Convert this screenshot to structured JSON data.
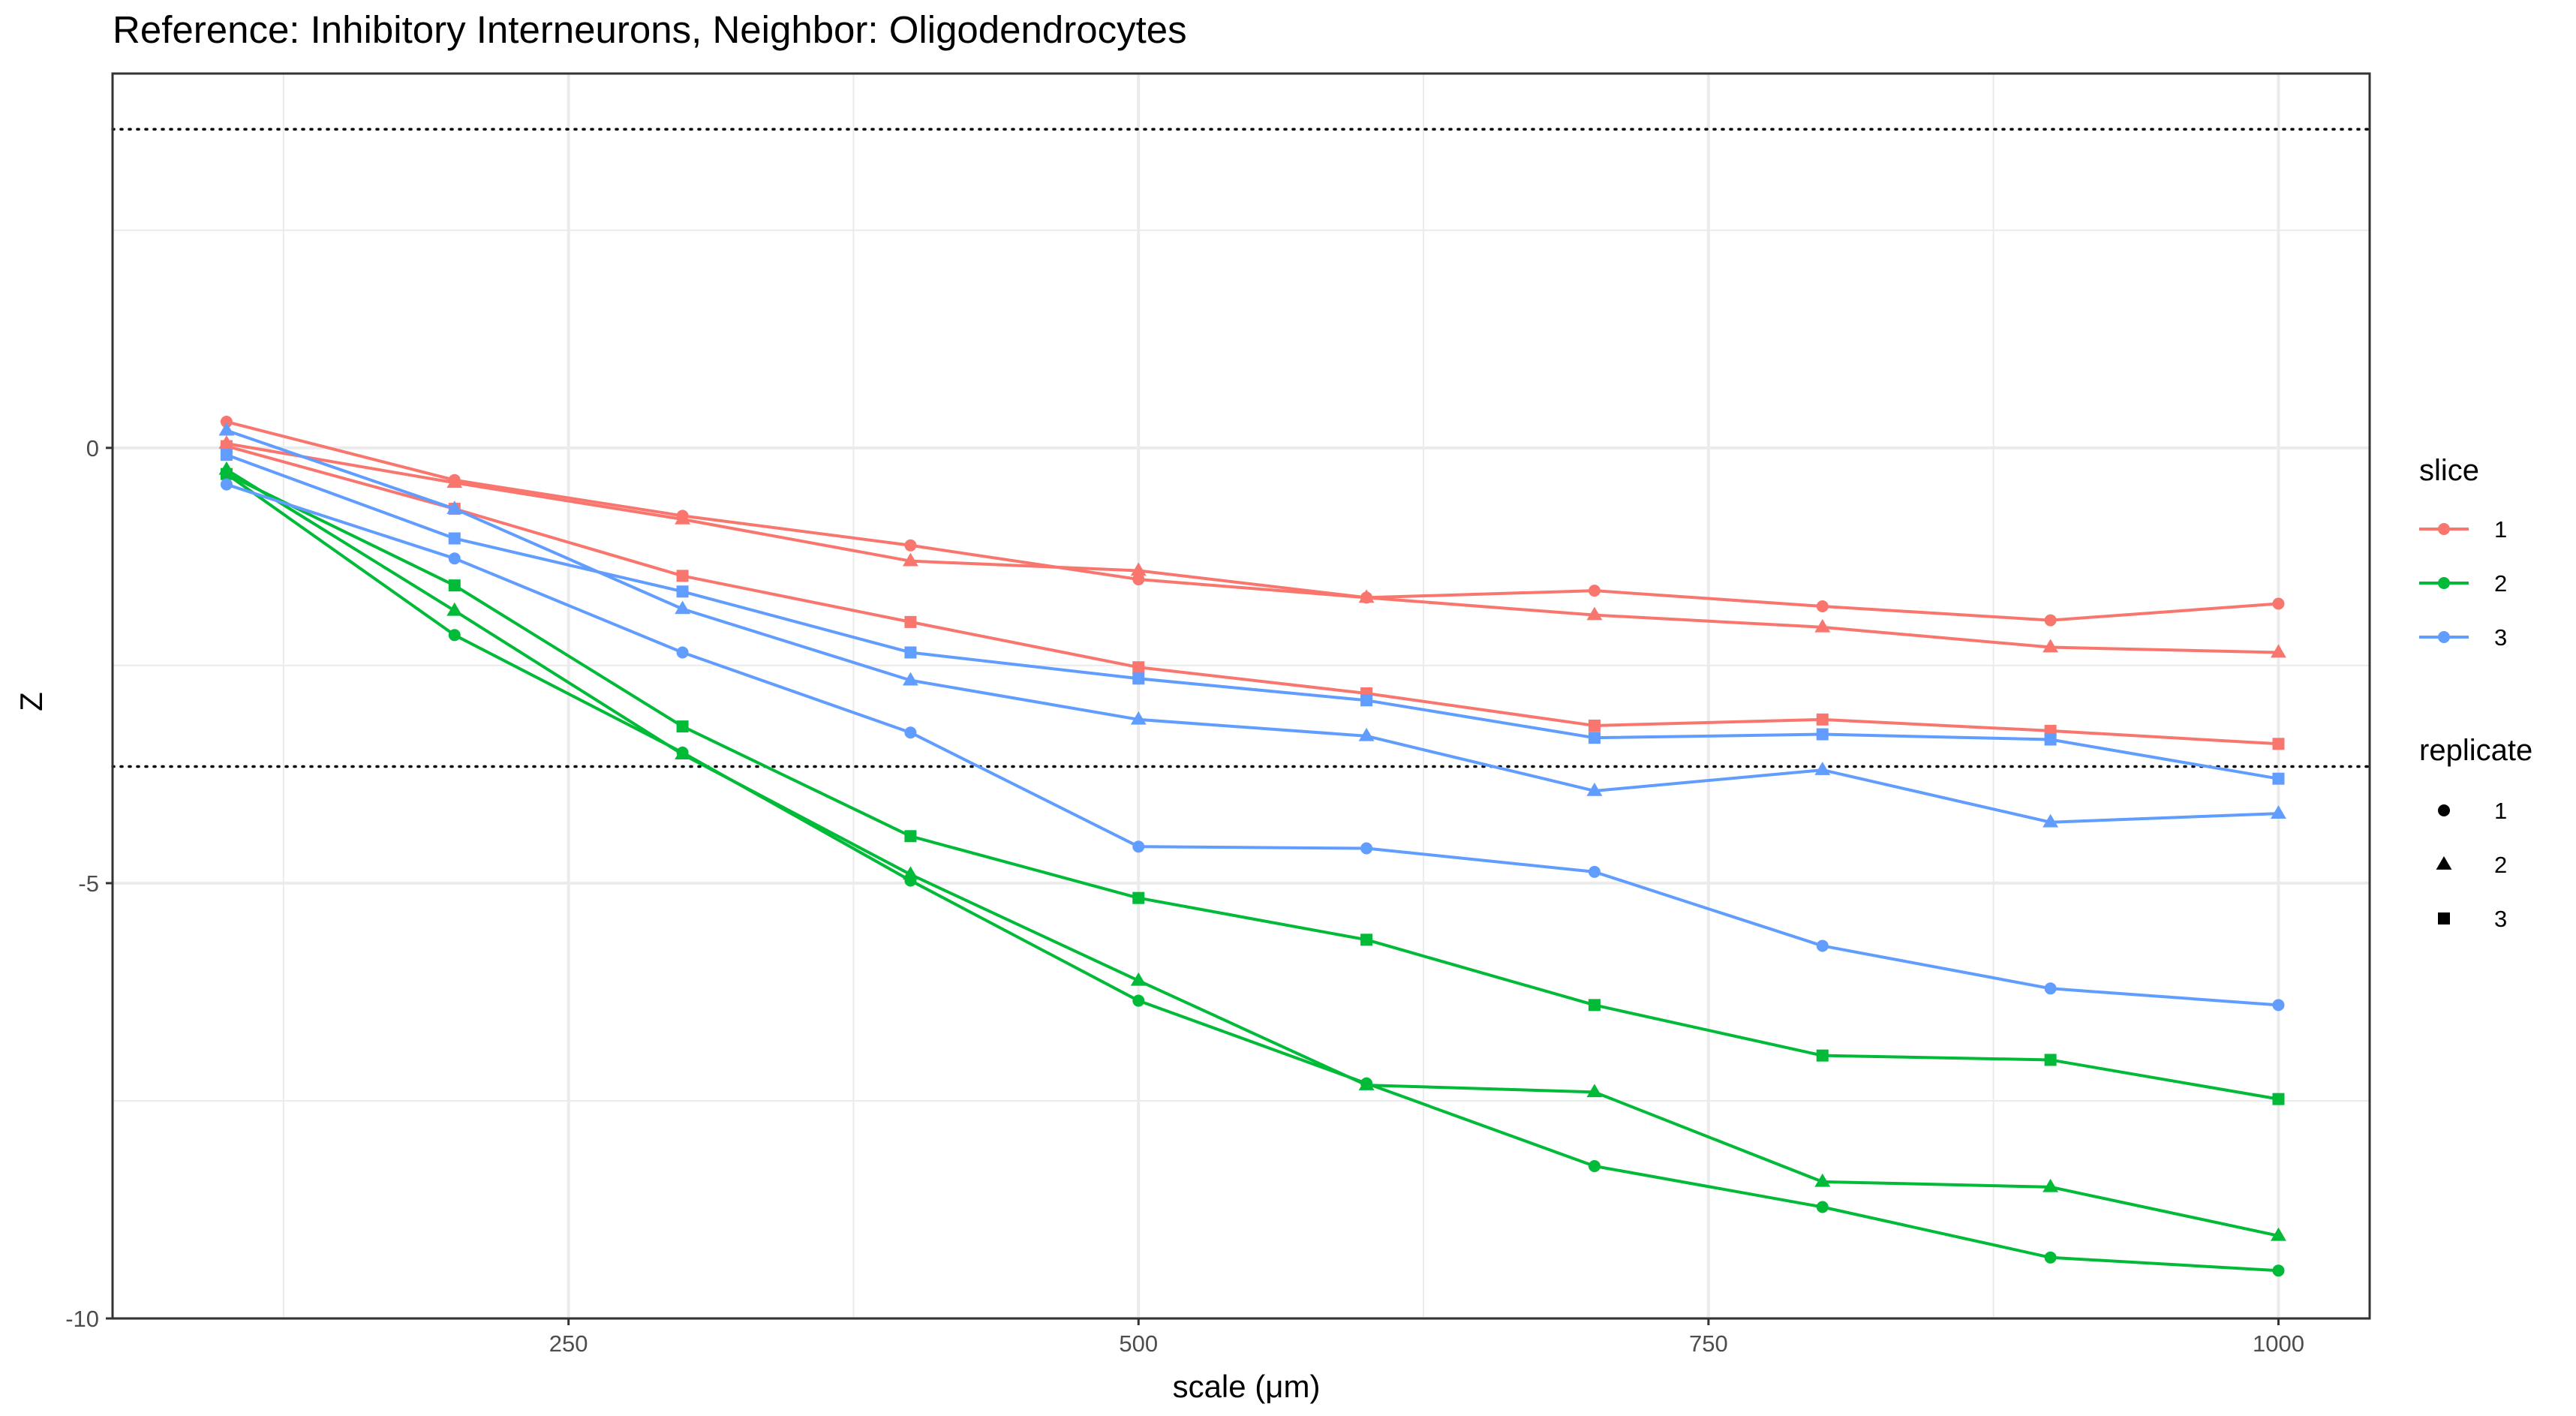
{
  "chart_data": {
    "type": "line",
    "title": "Reference: Inhibitory Interneurons, Neighbor: Oligodendrocytes",
    "xlabel": "scale (μm)",
    "ylabel": "Z",
    "xlim": [
      50,
      1040
    ],
    "ylim": [
      -10,
      4.3
    ],
    "x_ticks": [
      250,
      500,
      750,
      1000
    ],
    "x_tick_labels": [
      "250",
      "500",
      "750",
      "1000"
    ],
    "y_ticks": [
      0,
      -5,
      -10
    ],
    "y_tick_labels": [
      "0",
      "-5",
      "-10"
    ],
    "hlines": [
      3.66,
      -3.66
    ],
    "grid": true,
    "legend_position": "right",
    "legends": [
      {
        "title": "slice",
        "labels": [
          "1",
          "2",
          "3"
        ],
        "colors": [
          "#F8766D",
          "#00BA38",
          "#619CFF"
        ]
      },
      {
        "title": "replicate",
        "labels": [
          "1",
          "2",
          "3"
        ],
        "shapes": [
          "circle",
          "triangle",
          "square"
        ]
      }
    ],
    "x": [
      100,
      200,
      300,
      400,
      500,
      600,
      700,
      800,
      900,
      1000
    ],
    "series": [
      {
        "slice": "1",
        "replicate": "1",
        "color": "#F8766D",
        "shape": "circle",
        "values": [
          0.3,
          -0.37,
          -0.78,
          -1.12,
          -1.51,
          -1.72,
          -1.64,
          -1.82,
          -1.98,
          -1.79
        ]
      },
      {
        "slice": "1",
        "replicate": "2",
        "color": "#F8766D",
        "shape": "triangle",
        "values": [
          0.05,
          -0.4,
          -0.82,
          -1.3,
          -1.41,
          -1.72,
          -1.92,
          -2.06,
          -2.29,
          -2.35
        ]
      },
      {
        "slice": "1",
        "replicate": "3",
        "color": "#F8766D",
        "shape": "square",
        "values": [
          0.02,
          -0.7,
          -1.47,
          -2.0,
          -2.52,
          -2.82,
          -3.19,
          -3.12,
          -3.25,
          -3.4
        ]
      },
      {
        "slice": "2",
        "replicate": "1",
        "color": "#00BA38",
        "shape": "circle",
        "values": [
          -0.3,
          -2.15,
          -3.5,
          -4.97,
          -6.35,
          -7.3,
          -8.25,
          -8.72,
          -9.3,
          -9.45
        ]
      },
      {
        "slice": "2",
        "replicate": "2",
        "color": "#00BA38",
        "shape": "triangle",
        "values": [
          -0.25,
          -1.87,
          -3.52,
          -4.9,
          -6.12,
          -7.32,
          -7.4,
          -8.43,
          -8.49,
          -9.05
        ]
      },
      {
        "slice": "2",
        "replicate": "3",
        "color": "#00BA38",
        "shape": "square",
        "values": [
          -0.3,
          -1.58,
          -3.2,
          -4.46,
          -5.17,
          -5.65,
          -6.4,
          -6.98,
          -7.03,
          -7.48
        ]
      },
      {
        "slice": "3",
        "replicate": "1",
        "color": "#619CFF",
        "shape": "circle",
        "values": [
          -0.42,
          -1.27,
          -2.35,
          -3.27,
          -4.58,
          -4.6,
          -4.87,
          -5.72,
          -6.21,
          -6.4
        ]
      },
      {
        "slice": "3",
        "replicate": "2",
        "color": "#619CFF",
        "shape": "triangle",
        "values": [
          0.2,
          -0.7,
          -1.85,
          -2.67,
          -3.12,
          -3.31,
          -3.94,
          -3.7,
          -4.3,
          -4.2
        ]
      },
      {
        "slice": "3",
        "replicate": "3",
        "color": "#619CFF",
        "shape": "square",
        "values": [
          -0.08,
          -1.04,
          -1.65,
          -2.35,
          -2.65,
          -2.9,
          -3.33,
          -3.29,
          -3.35,
          -3.8
        ]
      }
    ]
  }
}
